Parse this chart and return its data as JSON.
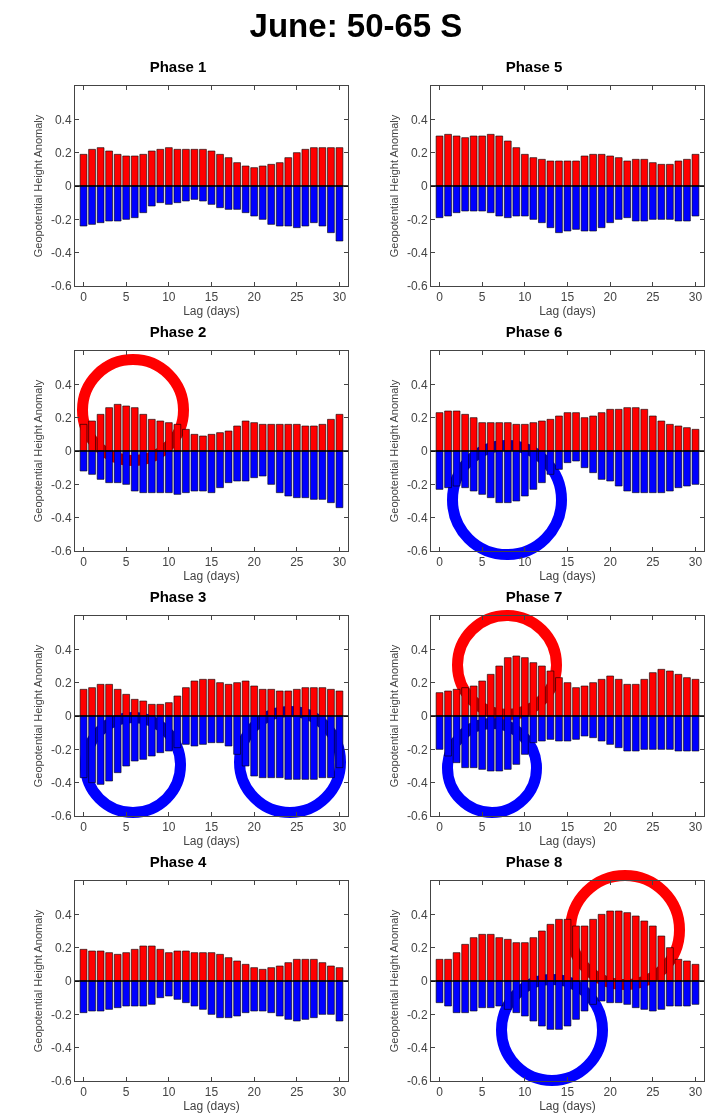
{
  "chart_data": [
    {
      "type": "other",
      "title": "June: 50-65 S"
    },
    {
      "type": "bar",
      "stacked": true,
      "title": "Phase 1",
      "xlabel": "Lag (days)",
      "ylabel": "Geopotential Height Anomaly",
      "x": [
        0,
        1,
        2,
        3,
        4,
        5,
        6,
        7,
        8,
        9,
        10,
        11,
        12,
        13,
        14,
        15,
        16,
        17,
        18,
        19,
        20,
        21,
        22,
        23,
        24,
        25,
        26,
        27,
        28,
        29,
        30
      ],
      "xlim": [
        -1,
        31
      ],
      "xticks": [
        0,
        5,
        10,
        15,
        20,
        25,
        30
      ],
      "ylim": [
        -0.6,
        0.6
      ],
      "yticks": [
        -0.6,
        -0.4,
        -0.2,
        0,
        0.2,
        0.4
      ],
      "ref_lines": [
        {
          "axis": "y",
          "value": 0,
          "color": "#000000"
        }
      ],
      "series": [
        {
          "color": "#ff0000",
          "values": [
            0.19,
            0.22,
            0.23,
            0.21,
            0.19,
            0.18,
            0.18,
            0.19,
            0.21,
            0.22,
            0.23,
            0.22,
            0.22,
            0.22,
            0.22,
            0.21,
            0.19,
            0.17,
            0.14,
            0.12,
            0.11,
            0.12,
            0.13,
            0.14,
            0.17,
            0.2,
            0.22,
            0.23,
            0.23,
            0.23,
            0.23
          ]
        },
        {
          "color": "#0000ff",
          "values": [
            -0.24,
            -0.23,
            -0.22,
            -0.21,
            -0.21,
            -0.2,
            -0.19,
            -0.16,
            -0.12,
            -0.1,
            -0.11,
            -0.1,
            -0.09,
            -0.08,
            -0.09,
            -0.11,
            -0.13,
            -0.14,
            -0.14,
            -0.16,
            -0.18,
            -0.2,
            -0.23,
            -0.24,
            -0.24,
            -0.25,
            -0.24,
            -0.22,
            -0.24,
            -0.28,
            -0.33
          ]
        }
      ]
    },
    {
      "type": "bar",
      "stacked": true,
      "title": "Phase 5",
      "xlabel": "Lag (days)",
      "ylabel": "Geopotential Height Anomaly",
      "x": [
        0,
        1,
        2,
        3,
        4,
        5,
        6,
        7,
        8,
        9,
        10,
        11,
        12,
        13,
        14,
        15,
        16,
        17,
        18,
        19,
        20,
        21,
        22,
        23,
        24,
        25,
        26,
        27,
        28,
        29,
        30
      ],
      "xlim": [
        -1,
        31
      ],
      "xticks": [
        0,
        5,
        10,
        15,
        20,
        25,
        30
      ],
      "ylim": [
        -0.6,
        0.6
      ],
      "yticks": [
        -0.6,
        -0.4,
        -0.2,
        0,
        0.2,
        0.4
      ],
      "ref_lines": [
        {
          "axis": "y",
          "value": 0,
          "color": "#000000"
        }
      ],
      "series": [
        {
          "color": "#ff0000",
          "values": [
            0.3,
            0.31,
            0.3,
            0.29,
            0.3,
            0.3,
            0.31,
            0.3,
            0.27,
            0.23,
            0.19,
            0.17,
            0.16,
            0.15,
            0.15,
            0.15,
            0.15,
            0.18,
            0.19,
            0.19,
            0.18,
            0.17,
            0.15,
            0.16,
            0.16,
            0.14,
            0.13,
            0.13,
            0.15,
            0.16,
            0.19
          ]
        },
        {
          "color": "#0000ff",
          "values": [
            -0.19,
            -0.18,
            -0.16,
            -0.15,
            -0.15,
            -0.15,
            -0.16,
            -0.18,
            -0.19,
            -0.18,
            -0.18,
            -0.2,
            -0.22,
            -0.25,
            -0.28,
            -0.27,
            -0.26,
            -0.27,
            -0.27,
            -0.25,
            -0.22,
            -0.2,
            -0.19,
            -0.21,
            -0.21,
            -0.2,
            -0.2,
            -0.2,
            -0.21,
            -0.21,
            -0.18
          ]
        }
      ]
    },
    {
      "type": "bar",
      "stacked": true,
      "title": "Phase 2",
      "xlabel": "Lag (days)",
      "ylabel": "Geopotential Height Anomaly",
      "x": [
        0,
        1,
        2,
        3,
        4,
        5,
        6,
        7,
        8,
        9,
        10,
        11,
        12,
        13,
        14,
        15,
        16,
        17,
        18,
        19,
        20,
        21,
        22,
        23,
        24,
        25,
        26,
        27,
        28,
        29,
        30
      ],
      "xlim": [
        -1,
        31
      ],
      "xticks": [
        0,
        5,
        10,
        15,
        20,
        25,
        30
      ],
      "ylim": [
        -0.6,
        0.6
      ],
      "yticks": [
        -0.6,
        -0.4,
        -0.2,
        0,
        0.2,
        0.4
      ],
      "ref_lines": [
        {
          "axis": "y",
          "value": 0,
          "color": "#000000"
        }
      ],
      "series": [
        {
          "color": "#ff0000",
          "values": [
            0.16,
            0.18,
            0.22,
            0.26,
            0.28,
            0.27,
            0.26,
            0.22,
            0.19,
            0.18,
            0.17,
            0.16,
            0.13,
            0.1,
            0.09,
            0.1,
            0.11,
            0.12,
            0.15,
            0.18,
            0.17,
            0.16,
            0.16,
            0.16,
            0.16,
            0.16,
            0.15,
            0.15,
            0.16,
            0.19,
            0.22
          ]
        },
        {
          "color": "#0000ff",
          "values": [
            -0.12,
            -0.14,
            -0.17,
            -0.19,
            -0.19,
            -0.2,
            -0.24,
            -0.25,
            -0.25,
            -0.25,
            -0.25,
            -0.26,
            -0.25,
            -0.24,
            -0.24,
            -0.25,
            -0.22,
            -0.19,
            -0.18,
            -0.18,
            -0.16,
            -0.15,
            -0.2,
            -0.25,
            -0.27,
            -0.28,
            -0.28,
            -0.29,
            -0.29,
            -0.31,
            -0.34
          ]
        }
      ]
    },
    {
      "type": "bar",
      "stacked": true,
      "title": "Phase 6",
      "xlabel": "Lag (days)",
      "ylabel": "Geopotential Height Anomaly",
      "x": [
        0,
        1,
        2,
        3,
        4,
        5,
        6,
        7,
        8,
        9,
        10,
        11,
        12,
        13,
        14,
        15,
        16,
        17,
        18,
        19,
        20,
        21,
        22,
        23,
        24,
        25,
        26,
        27,
        28,
        29,
        30
      ],
      "xlim": [
        -1,
        31
      ],
      "xticks": [
        0,
        5,
        10,
        15,
        20,
        25,
        30
      ],
      "ylim": [
        -0.6,
        0.6
      ],
      "yticks": [
        -0.6,
        -0.4,
        -0.2,
        0,
        0.2,
        0.4
      ],
      "ref_lines": [
        {
          "axis": "y",
          "value": 0,
          "color": "#000000"
        }
      ],
      "series": [
        {
          "color": "#ff0000",
          "values": [
            0.23,
            0.24,
            0.24,
            0.22,
            0.2,
            0.17,
            0.17,
            0.17,
            0.17,
            0.16,
            0.16,
            0.17,
            0.18,
            0.19,
            0.21,
            0.23,
            0.23,
            0.2,
            0.21,
            0.23,
            0.25,
            0.25,
            0.26,
            0.26,
            0.25,
            0.21,
            0.18,
            0.16,
            0.15,
            0.14,
            0.13
          ]
        },
        {
          "color": "#0000ff",
          "values": [
            -0.23,
            -0.22,
            -0.21,
            -0.22,
            -0.24,
            -0.26,
            -0.28,
            -0.31,
            -0.31,
            -0.3,
            -0.27,
            -0.23,
            -0.19,
            -0.14,
            -0.11,
            -0.07,
            -0.06,
            -0.1,
            -0.13,
            -0.17,
            -0.18,
            -0.21,
            -0.24,
            -0.25,
            -0.25,
            -0.25,
            -0.25,
            -0.24,
            -0.22,
            -0.21,
            -0.2
          ]
        }
      ]
    },
    {
      "type": "bar",
      "stacked": true,
      "title": "Phase 3",
      "xlabel": "Lag (days)",
      "ylabel": "Geopotential Height Anomaly",
      "x": [
        0,
        1,
        2,
        3,
        4,
        5,
        6,
        7,
        8,
        9,
        10,
        11,
        12,
        13,
        14,
        15,
        16,
        17,
        18,
        19,
        20,
        21,
        22,
        23,
        24,
        25,
        26,
        27,
        28,
        29,
        30
      ],
      "xlim": [
        -1,
        31
      ],
      "xticks": [
        0,
        5,
        10,
        15,
        20,
        25,
        30
      ],
      "ylim": [
        -0.6,
        0.6
      ],
      "yticks": [
        -0.6,
        -0.4,
        -0.2,
        0,
        0.2,
        0.4
      ],
      "ref_lines": [
        {
          "axis": "y",
          "value": 0,
          "color": "#000000"
        }
      ],
      "series": [
        {
          "color": "#ff0000",
          "values": [
            0.16,
            0.17,
            0.19,
            0.19,
            0.16,
            0.13,
            0.1,
            0.09,
            0.07,
            0.07,
            0.08,
            0.12,
            0.17,
            0.21,
            0.22,
            0.22,
            0.2,
            0.19,
            0.2,
            0.21,
            0.18,
            0.16,
            0.16,
            0.15,
            0.15,
            0.16,
            0.17,
            0.17,
            0.17,
            0.16,
            0.15
          ]
        },
        {
          "color": "#0000ff",
          "values": [
            -0.37,
            -0.4,
            -0.41,
            -0.39,
            -0.34,
            -0.3,
            -0.27,
            -0.26,
            -0.24,
            -0.22,
            -0.21,
            -0.19,
            -0.17,
            -0.18,
            -0.17,
            -0.16,
            -0.16,
            -0.18,
            -0.23,
            -0.3,
            -0.36,
            -0.37,
            -0.37,
            -0.37,
            -0.38,
            -0.38,
            -0.38,
            -0.38,
            -0.37,
            -0.37,
            -0.31
          ]
        }
      ]
    },
    {
      "type": "bar",
      "stacked": true,
      "title": "Phase 7",
      "xlabel": "Lag (days)",
      "ylabel": "Geopotential Height Anomaly",
      "x": [
        0,
        1,
        2,
        3,
        4,
        5,
        6,
        7,
        8,
        9,
        10,
        11,
        12,
        13,
        14,
        15,
        16,
        17,
        18,
        19,
        20,
        21,
        22,
        23,
        24,
        25,
        26,
        27,
        28,
        29,
        30
      ],
      "xlim": [
        -1,
        31
      ],
      "xticks": [
        0,
        5,
        10,
        15,
        20,
        25,
        30
      ],
      "ylim": [
        -0.6,
        0.6
      ],
      "yticks": [
        -0.6,
        -0.4,
        -0.2,
        0,
        0.2,
        0.4
      ],
      "ref_lines": [
        {
          "axis": "y",
          "value": 0,
          "color": "#000000"
        }
      ],
      "series": [
        {
          "color": "#ff0000",
          "values": [
            0.14,
            0.15,
            0.16,
            0.17,
            0.18,
            0.21,
            0.25,
            0.3,
            0.35,
            0.36,
            0.35,
            0.32,
            0.3,
            0.27,
            0.23,
            0.2,
            0.17,
            0.18,
            0.2,
            0.22,
            0.24,
            0.22,
            0.19,
            0.19,
            0.22,
            0.26,
            0.28,
            0.27,
            0.25,
            0.23,
            0.22
          ]
        },
        {
          "color": "#0000ff",
          "values": [
            -0.2,
            -0.24,
            -0.28,
            -0.31,
            -0.31,
            -0.32,
            -0.33,
            -0.33,
            -0.32,
            -0.29,
            -0.23,
            -0.16,
            -0.15,
            -0.14,
            -0.15,
            -0.15,
            -0.14,
            -0.12,
            -0.13,
            -0.15,
            -0.17,
            -0.19,
            -0.21,
            -0.21,
            -0.2,
            -0.2,
            -0.2,
            -0.2,
            -0.21,
            -0.21,
            -0.21
          ]
        }
      ]
    },
    {
      "type": "bar",
      "stacked": true,
      "title": "Phase 4",
      "xlabel": "Lag (days)",
      "ylabel": "Geopotential Height Anomaly",
      "x": [
        0,
        1,
        2,
        3,
        4,
        5,
        6,
        7,
        8,
        9,
        10,
        11,
        12,
        13,
        14,
        15,
        16,
        17,
        18,
        19,
        20,
        21,
        22,
        23,
        24,
        25,
        26,
        27,
        28,
        29,
        30
      ],
      "xlim": [
        -1,
        31
      ],
      "xticks": [
        0,
        5,
        10,
        15,
        20,
        25,
        30
      ],
      "ylim": [
        -0.6,
        0.6
      ],
      "yticks": [
        -0.6,
        -0.4,
        -0.2,
        0,
        0.2,
        0.4
      ],
      "ref_lines": [
        {
          "axis": "y",
          "value": 0,
          "color": "#000000"
        }
      ],
      "series": [
        {
          "color": "#ff0000",
          "values": [
            0.19,
            0.18,
            0.18,
            0.17,
            0.16,
            0.17,
            0.19,
            0.21,
            0.21,
            0.19,
            0.17,
            0.18,
            0.18,
            0.17,
            0.17,
            0.17,
            0.16,
            0.14,
            0.12,
            0.1,
            0.08,
            0.07,
            0.08,
            0.09,
            0.11,
            0.13,
            0.13,
            0.13,
            0.11,
            0.09,
            0.08
          ]
        },
        {
          "color": "#0000ff",
          "values": [
            -0.19,
            -0.18,
            -0.18,
            -0.17,
            -0.16,
            -0.15,
            -0.15,
            -0.15,
            -0.14,
            -0.1,
            -0.09,
            -0.11,
            -0.13,
            -0.15,
            -0.17,
            -0.2,
            -0.22,
            -0.22,
            -0.21,
            -0.19,
            -0.18,
            -0.18,
            -0.19,
            -0.21,
            -0.23,
            -0.24,
            -0.23,
            -0.22,
            -0.2,
            -0.2,
            -0.24
          ]
        }
      ]
    },
    {
      "type": "bar",
      "stacked": true,
      "title": "Phase 8",
      "xlabel": "Lag (days)",
      "ylabel": "Geopotential Height Anomaly",
      "x": [
        0,
        1,
        2,
        3,
        4,
        5,
        6,
        7,
        8,
        9,
        10,
        11,
        12,
        13,
        14,
        15,
        16,
        17,
        18,
        19,
        20,
        21,
        22,
        23,
        24,
        25,
        26,
        27,
        28,
        29,
        30
      ],
      "xlim": [
        -1,
        31
      ],
      "xticks": [
        0,
        5,
        10,
        15,
        20,
        25,
        30
      ],
      "ylim": [
        -0.6,
        0.6
      ],
      "yticks": [
        -0.6,
        -0.4,
        -0.2,
        0,
        0.2,
        0.4
      ],
      "ref_lines": [
        {
          "axis": "y",
          "value": 0,
          "color": "#000000"
        }
      ],
      "series": [
        {
          "color": "#ff0000",
          "values": [
            0.13,
            0.13,
            0.17,
            0.22,
            0.26,
            0.28,
            0.28,
            0.26,
            0.25,
            0.23,
            0.23,
            0.26,
            0.3,
            0.34,
            0.37,
            0.37,
            0.33,
            0.33,
            0.37,
            0.4,
            0.42,
            0.42,
            0.41,
            0.39,
            0.36,
            0.33,
            0.27,
            0.2,
            0.13,
            0.12,
            0.1
          ]
        },
        {
          "color": "#0000ff",
          "values": [
            -0.13,
            -0.15,
            -0.19,
            -0.19,
            -0.18,
            -0.16,
            -0.16,
            -0.15,
            -0.17,
            -0.19,
            -0.21,
            -0.24,
            -0.27,
            -0.29,
            -0.29,
            -0.27,
            -0.23,
            -0.18,
            -0.14,
            -0.12,
            -0.13,
            -0.13,
            -0.14,
            -0.16,
            -0.17,
            -0.18,
            -0.17,
            -0.15,
            -0.15,
            -0.15,
            -0.14
          ]
        }
      ]
    }
  ]
}
